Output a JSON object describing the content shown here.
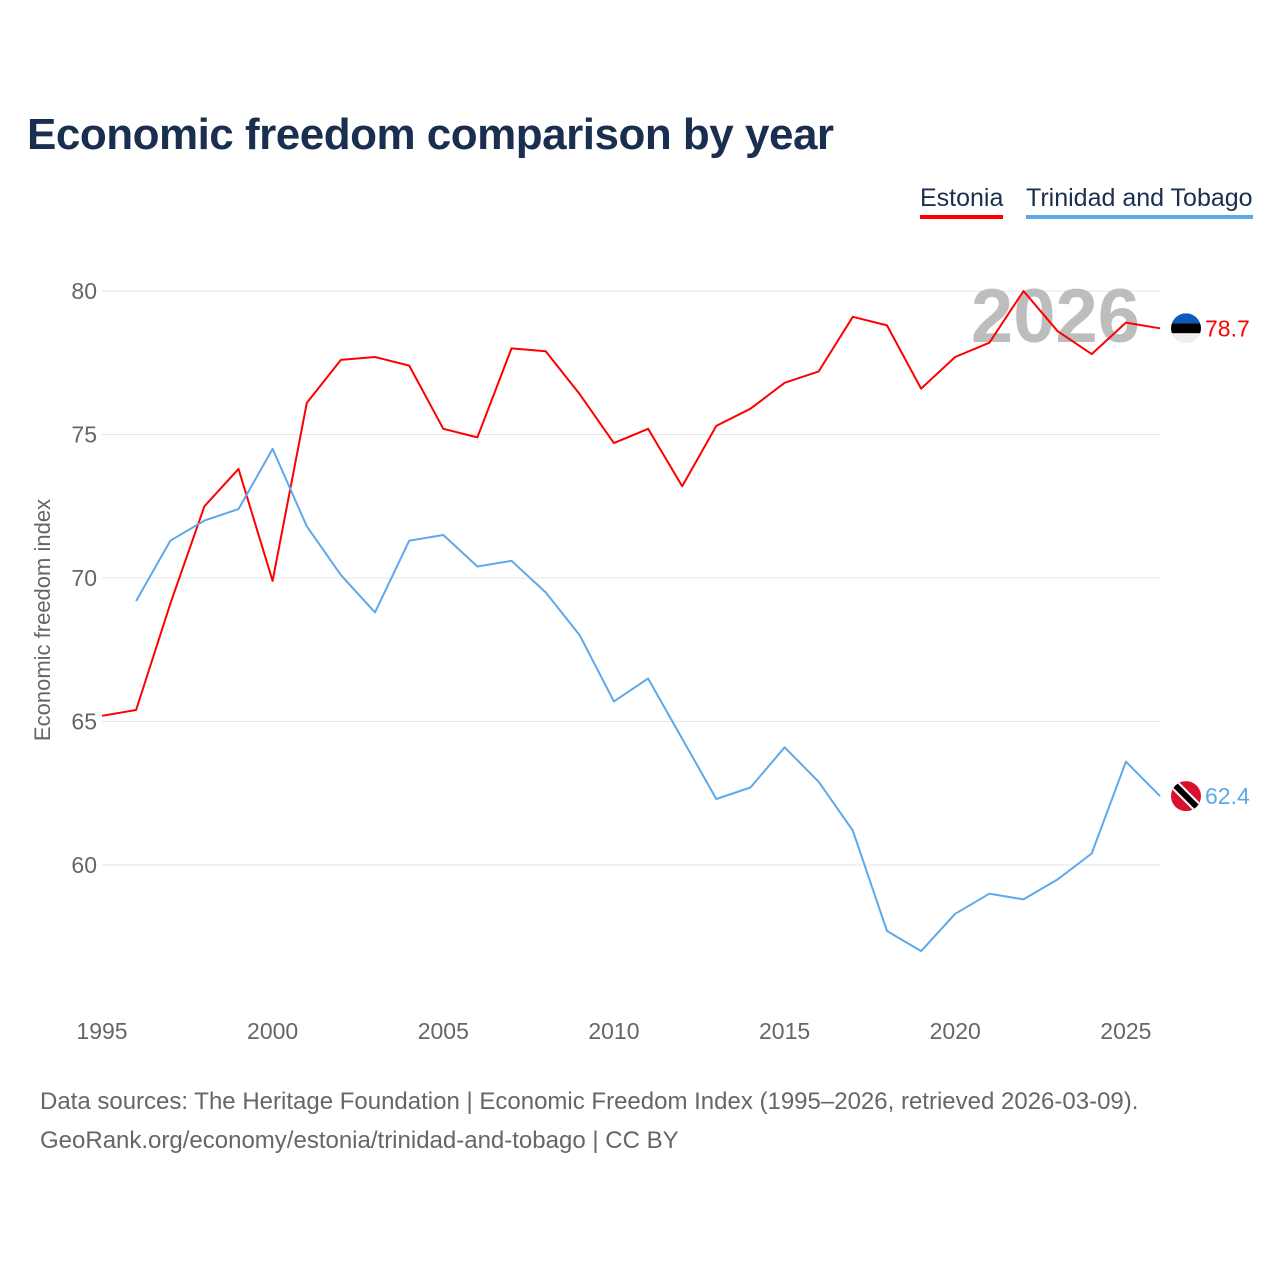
{
  "chart_data": {
    "type": "line",
    "title": "Economic freedom comparison by year",
    "xlabel": "",
    "ylabel": "Economic freedom index",
    "xlim": [
      1995,
      2026
    ],
    "ylim": [
      56,
      82
    ],
    "x_ticks": [
      1995,
      2000,
      2005,
      2010,
      2015,
      2020,
      2025
    ],
    "y_ticks": [
      60,
      65,
      70,
      75,
      80
    ],
    "grid": true,
    "legend_position": "top-right",
    "year_watermark": "2026",
    "series": [
      {
        "name": "Estonia",
        "color": "#ff0000",
        "end_label": "78.7",
        "x": [
          1995,
          1996,
          1997,
          1998,
          1999,
          2000,
          2001,
          2002,
          2003,
          2004,
          2005,
          2006,
          2007,
          2008,
          2009,
          2010,
          2011,
          2012,
          2013,
          2014,
          2015,
          2016,
          2017,
          2018,
          2019,
          2020,
          2021,
          2022,
          2023,
          2024,
          2025,
          2026
        ],
        "values": [
          65.2,
          65.4,
          69.1,
          72.5,
          73.8,
          69.9,
          76.1,
          77.6,
          77.7,
          77.4,
          75.2,
          74.9,
          78.0,
          77.9,
          76.4,
          74.7,
          75.2,
          73.2,
          75.3,
          75.9,
          76.8,
          77.2,
          79.1,
          78.8,
          76.6,
          77.7,
          78.2,
          80.0,
          78.6,
          77.8,
          78.9,
          78.7
        ]
      },
      {
        "name": "Trinidad and Tobago",
        "color": "#5ea8ec",
        "end_label": "62.4",
        "x": [
          1996,
          1997,
          1998,
          1999,
          2000,
          2001,
          2002,
          2003,
          2004,
          2005,
          2006,
          2007,
          2008,
          2009,
          2010,
          2011,
          2012,
          2013,
          2014,
          2015,
          2016,
          2017,
          2018,
          2019,
          2020,
          2021,
          2022,
          2023,
          2024,
          2025,
          2026
        ],
        "values": [
          69.2,
          71.3,
          72.0,
          72.4,
          74.5,
          71.8,
          70.1,
          68.8,
          71.3,
          71.5,
          70.4,
          70.6,
          69.5,
          68.0,
          65.7,
          66.5,
          64.4,
          62.3,
          62.7,
          64.1,
          62.9,
          61.2,
          57.7,
          57.0,
          58.3,
          59.0,
          58.8,
          59.5,
          60.4,
          63.6,
          62.4
        ]
      }
    ]
  },
  "footer": {
    "line1": "Data sources: The Heritage Foundation | Economic Freedom Index (1995–2026, retrieved 2026-03-09).",
    "line2": "GeoRank.org/economy/estonia/trinidad-and-tobago | CC BY"
  }
}
